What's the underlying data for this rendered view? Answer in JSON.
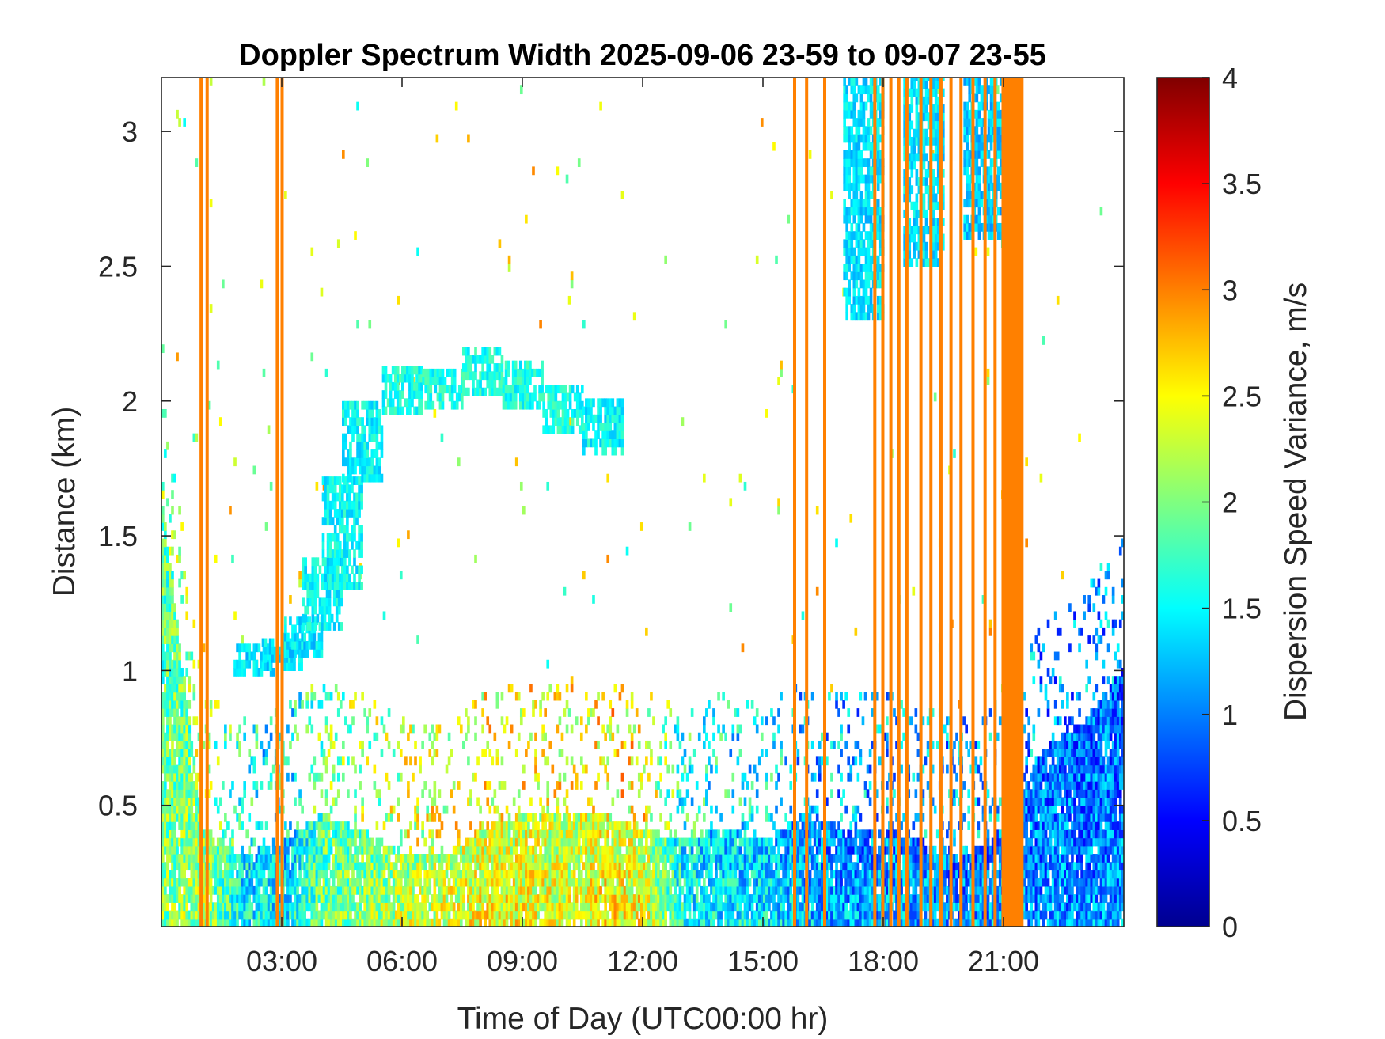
{
  "chart_data": {
    "type": "heatmap",
    "title": "Doppler Spectrum Width 2025-09-06 23-59 to 09-07 23-55",
    "xlabel": "Time of Day (UTC00:00 hr)",
    "ylabel": "Distance (km)",
    "colorbar_label": "Dispersion Speed Variance, m/s",
    "colormap": "jet",
    "x_unit": "hours",
    "xlim": [
      0,
      24
    ],
    "ylim": [
      0.05,
      3.2
    ],
    "clim": [
      0,
      4
    ],
    "x_ticks": [
      {
        "value": 3,
        "label": "03:00"
      },
      {
        "value": 6,
        "label": "06:00"
      },
      {
        "value": 9,
        "label": "09:00"
      },
      {
        "value": 12,
        "label": "12:00"
      },
      {
        "value": 15,
        "label": "15:00"
      },
      {
        "value": 18,
        "label": "18:00"
      },
      {
        "value": 21,
        "label": "21:00"
      }
    ],
    "y_ticks": [
      {
        "value": 0.5,
        "label": "0.5"
      },
      {
        "value": 1,
        "label": "1"
      },
      {
        "value": 1.5,
        "label": "1.5"
      },
      {
        "value": 2,
        "label": "2"
      },
      {
        "value": 2.5,
        "label": "2.5"
      },
      {
        "value": 3,
        "label": "3"
      }
    ],
    "colorbar_ticks": [
      {
        "value": 0,
        "label": "0"
      },
      {
        "value": 0.5,
        "label": "0.5"
      },
      {
        "value": 1,
        "label": "1"
      },
      {
        "value": 1.5,
        "label": "1.5"
      },
      {
        "value": 2,
        "label": "2"
      },
      {
        "value": 2.5,
        "label": "2.5"
      },
      {
        "value": 3,
        "label": "3"
      },
      {
        "value": 3.5,
        "label": "3.5"
      },
      {
        "value": 4,
        "label": "4"
      }
    ],
    "boundary_layer_echo": [
      {
        "x": 0,
        "top_km": 1.6,
        "value": 2.0
      },
      {
        "x": 1,
        "top_km": 0.4,
        "value": 2.2
      },
      {
        "x": 2,
        "top_km": 0.3,
        "value": 1.6
      },
      {
        "x": 3,
        "top_km": 0.35,
        "value": 1.4
      },
      {
        "x": 4,
        "top_km": 0.45,
        "value": 2.0
      },
      {
        "x": 5,
        "top_km": 0.4,
        "value": 2.1
      },
      {
        "x": 6,
        "top_km": 0.3,
        "value": 2.3
      },
      {
        "x": 7,
        "top_km": 0.3,
        "value": 2.4
      },
      {
        "x": 8,
        "top_km": 0.4,
        "value": 2.5
      },
      {
        "x": 9,
        "top_km": 0.45,
        "value": 2.5
      },
      {
        "x": 10,
        "top_km": 0.45,
        "value": 2.4
      },
      {
        "x": 11,
        "top_km": 0.45,
        "value": 2.6
      },
      {
        "x": 12,
        "top_km": 0.4,
        "value": 2.5
      },
      {
        "x": 13,
        "top_km": 0.35,
        "value": 1.6
      },
      {
        "x": 14,
        "top_km": 0.4,
        "value": 1.5
      },
      {
        "x": 15,
        "top_km": 0.35,
        "value": 1.5
      },
      {
        "x": 16,
        "top_km": 0.45,
        "value": 1.3
      },
      {
        "x": 17,
        "top_km": 0.4,
        "value": 1.2
      },
      {
        "x": 18,
        "top_km": 0.4,
        "value": 1.2
      },
      {
        "x": 19,
        "top_km": 0.35,
        "value": 1.2
      },
      {
        "x": 20,
        "top_km": 0.3,
        "value": 1.1
      },
      {
        "x": 21,
        "top_km": 0.4,
        "value": 1.2
      },
      {
        "x": 22,
        "top_km": 0.7,
        "value": 1.1
      },
      {
        "x": 23,
        "top_km": 0.8,
        "value": 1.1
      },
      {
        "x": 24,
        "top_km": 1.0,
        "value": 1.1
      }
    ],
    "cloud_layer_echo": [
      {
        "x": 2.3,
        "bottom_km": 0.98,
        "top_km": 1.1,
        "value": 1.4
      },
      {
        "x": 3.0,
        "bottom_km": 1.0,
        "top_km": 1.12,
        "value": 1.4
      },
      {
        "x": 3.5,
        "bottom_km": 1.05,
        "top_km": 1.2,
        "value": 1.4
      },
      {
        "x": 4.0,
        "bottom_km": 1.15,
        "top_km": 1.4,
        "value": 1.5
      },
      {
        "x": 4.5,
        "bottom_km": 1.3,
        "top_km": 1.7,
        "value": 1.5
      },
      {
        "x": 5.0,
        "bottom_km": 1.7,
        "top_km": 2.0,
        "value": 1.5
      },
      {
        "x": 6.0,
        "bottom_km": 1.95,
        "top_km": 2.1,
        "value": 1.6
      },
      {
        "x": 7.0,
        "bottom_km": 1.97,
        "top_km": 2.1,
        "value": 1.6
      },
      {
        "x": 8.0,
        "bottom_km": 2.02,
        "top_km": 2.18,
        "value": 1.6
      },
      {
        "x": 9.0,
        "bottom_km": 1.97,
        "top_km": 2.12,
        "value": 1.6
      },
      {
        "x": 10.0,
        "bottom_km": 1.88,
        "top_km": 2.05,
        "value": 1.6
      },
      {
        "x": 11.0,
        "bottom_km": 1.8,
        "top_km": 2.0,
        "value": 1.5
      },
      {
        "x": 17.5,
        "bottom_km": 2.3,
        "top_km": 3.2,
        "value": 1.4
      },
      {
        "x": 19.0,
        "bottom_km": 2.5,
        "top_km": 3.2,
        "value": 1.4
      },
      {
        "x": 20.5,
        "bottom_km": 2.6,
        "top_km": 3.2,
        "value": 1.3
      }
    ],
    "vertical_artifact_stripes": [
      {
        "x": 0.95,
        "value": 3.0
      },
      {
        "x": 1.1,
        "value": 3.0
      },
      {
        "x": 2.85,
        "value": 3.0
      },
      {
        "x": 2.97,
        "value": 3.0
      },
      {
        "x": 15.75,
        "value": 3.0
      },
      {
        "x": 16.05,
        "value": 3.0
      },
      {
        "x": 16.5,
        "value": 3.0
      },
      {
        "x": 17.75,
        "value": 3.0
      },
      {
        "x": 17.95,
        "value": 3.0
      },
      {
        "x": 18.15,
        "value": 3.0
      },
      {
        "x": 18.35,
        "value": 3.0
      },
      {
        "x": 18.55,
        "value": 3.0
      },
      {
        "x": 18.9,
        "value": 3.0
      },
      {
        "x": 19.15,
        "value": 3.0
      },
      {
        "x": 19.4,
        "value": 3.0
      },
      {
        "x": 19.65,
        "value": 3.0
      },
      {
        "x": 19.9,
        "value": 3.0
      },
      {
        "x": 20.2,
        "value": 3.0
      },
      {
        "x": 20.5,
        "value": 3.0
      },
      {
        "x": 20.75,
        "value": 3.0
      }
    ],
    "vertical_artifact_band": {
      "x_start": 20.95,
      "x_end": 21.5,
      "value": 3.0
    }
  }
}
